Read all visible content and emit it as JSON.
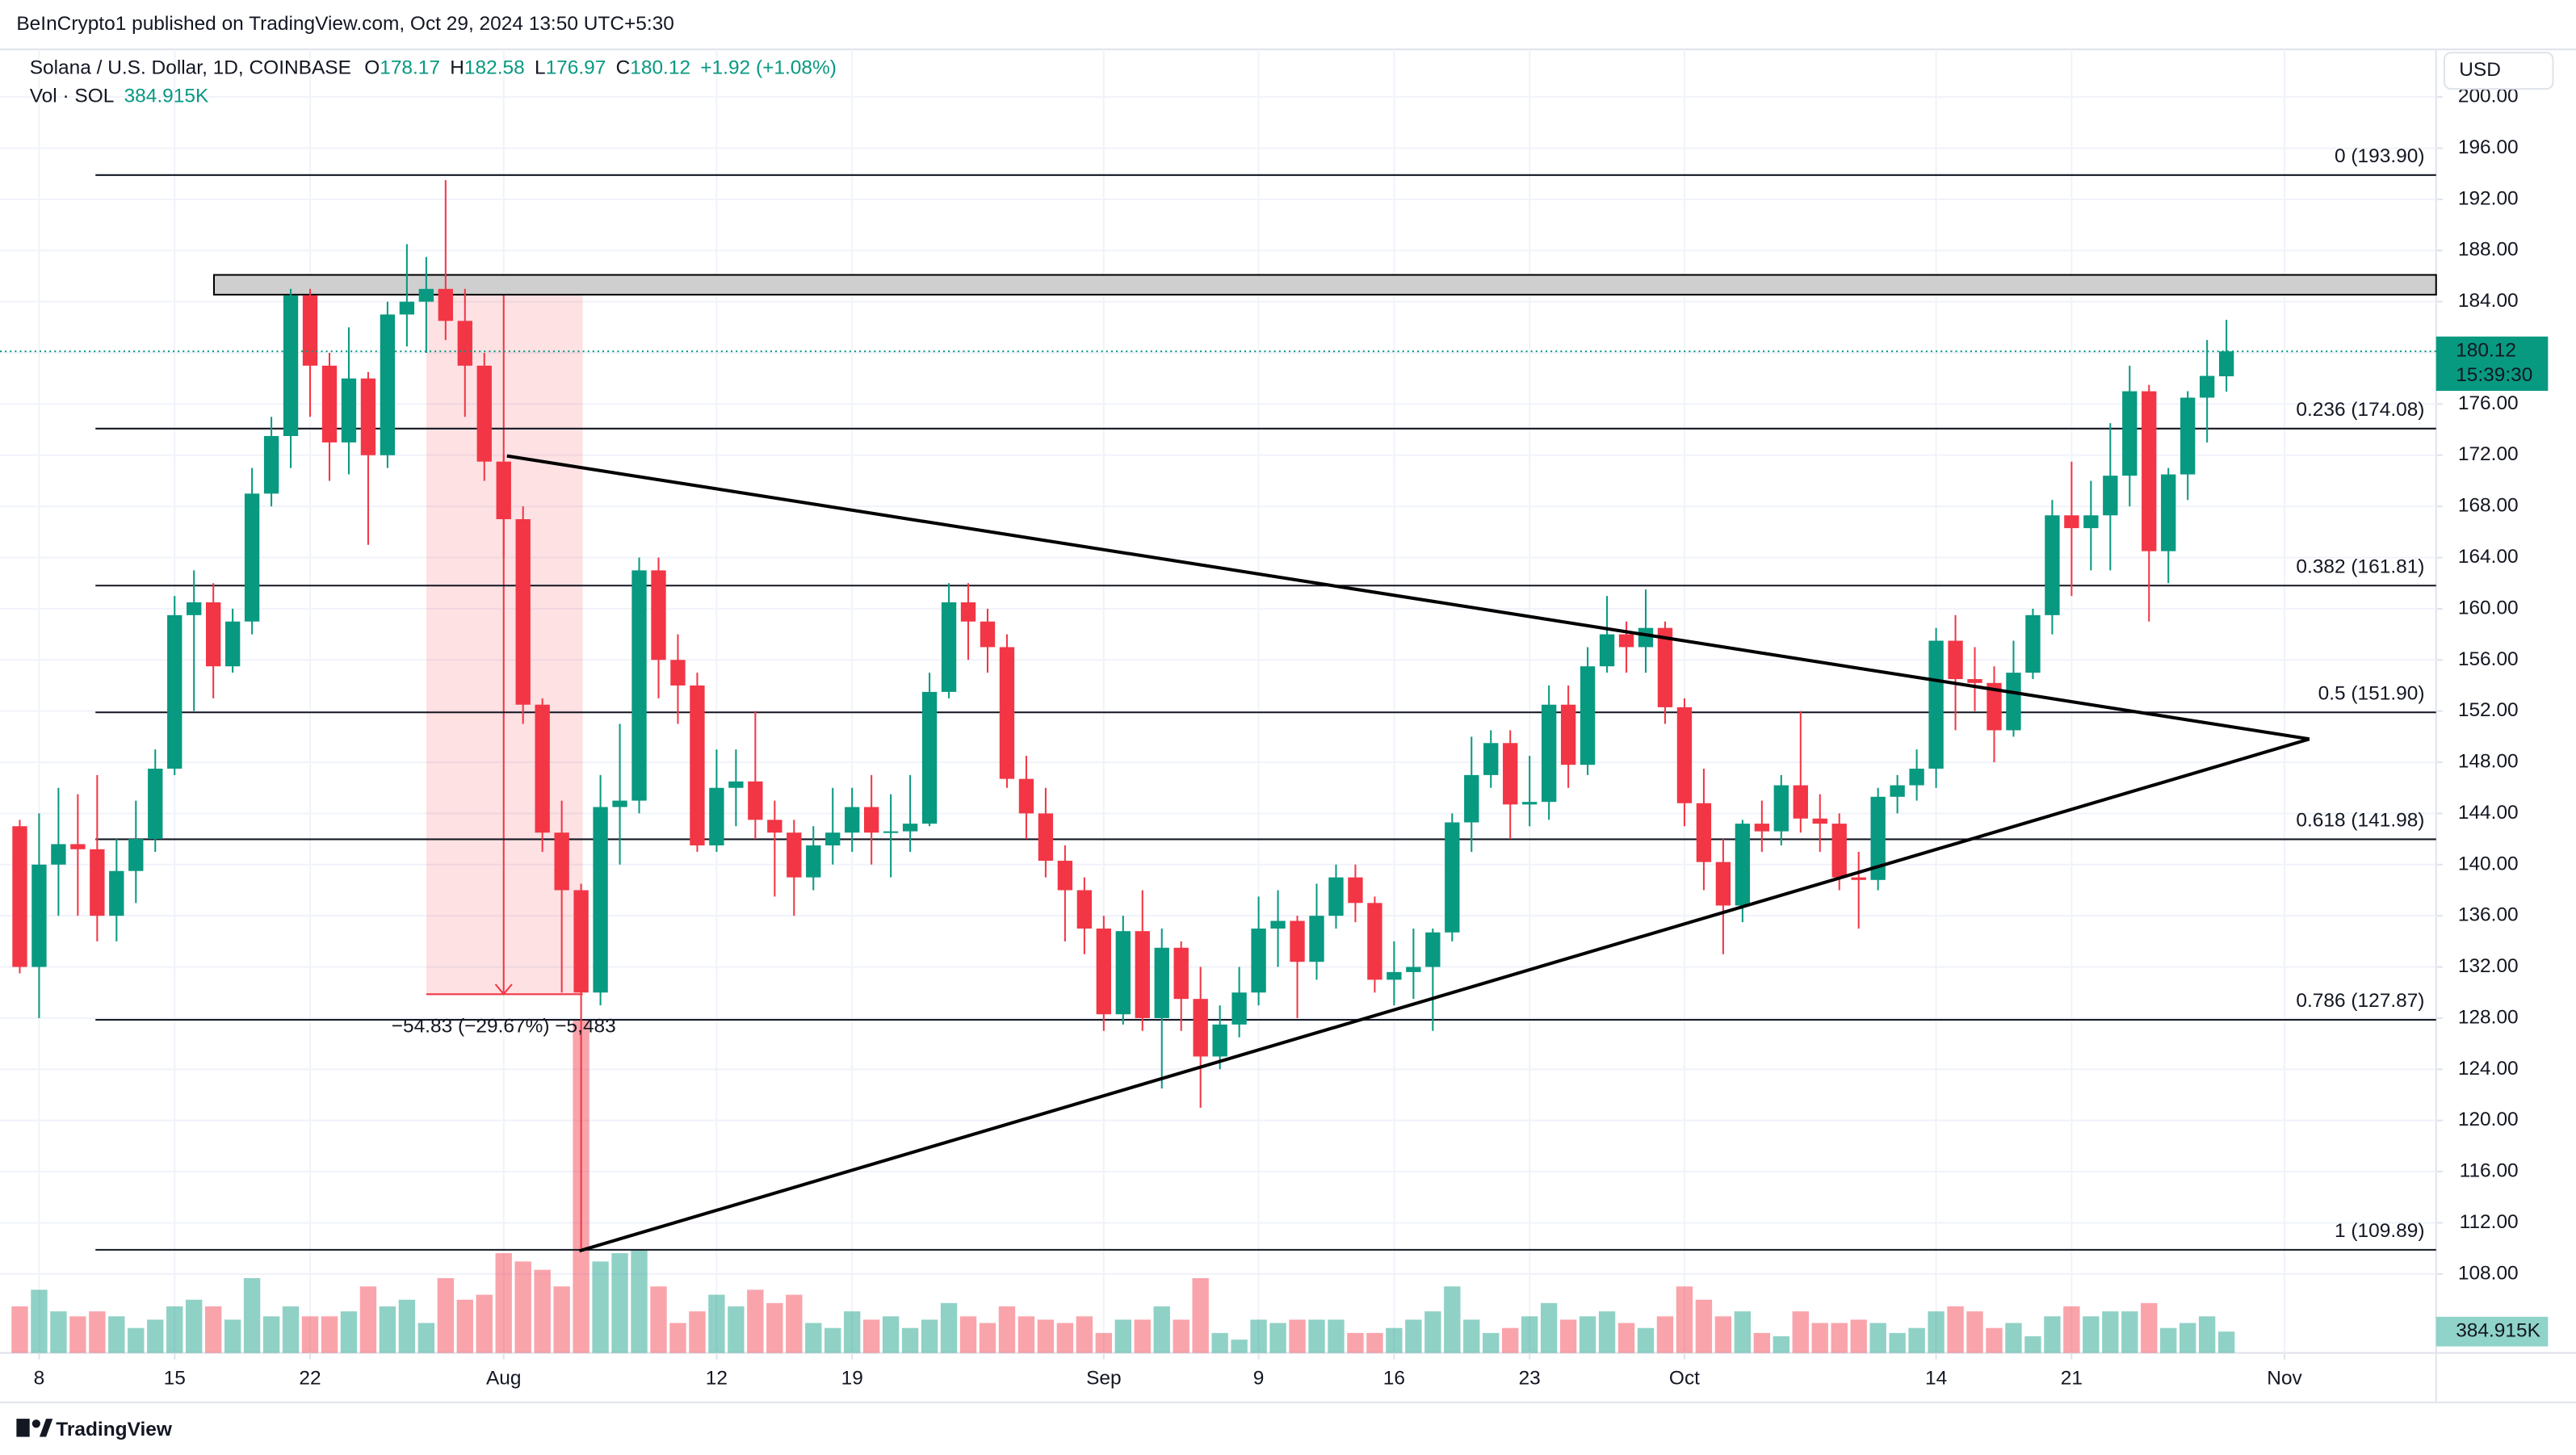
{
  "header": {
    "published": "BeInCrypto1 published on TradingView.com, Oct 29, 2024 13:50 UTC+5:30"
  },
  "legend": {
    "symbol": "Solana / U.S. Dollar, 1D, COINBASE",
    "ohlc": [
      {
        "key": "O",
        "value": "178.17"
      },
      {
        "key": "H",
        "value": "182.58"
      },
      {
        "key": "L",
        "value": "176.97"
      },
      {
        "key": "C",
        "value": "180.12"
      }
    ],
    "change": "+1.92 (+1.08%)",
    "volume_title": "Vol · SOL",
    "volume": "384.915K"
  },
  "currency": "USD",
  "price_label": "180.12",
  "countdown": "15:39:30",
  "volume_value_label": "384.915K",
  "measure_label": "−54.83 (−29.67%) −5,483",
  "brand": "TradingView",
  "chart_data": {
    "type": "candlestick",
    "up_color": "#089981",
    "down_color": "#f23645",
    "grid": true,
    "ylim": [
      101.83,
      203.72
    ],
    "yticks": [
      {
        "value": 200,
        "label": "200.00"
      },
      {
        "value": 196,
        "label": "196.00"
      },
      {
        "value": 192,
        "label": "192.00"
      },
      {
        "value": 188,
        "label": "188.00"
      },
      {
        "value": 184,
        "label": "184.00"
      },
      {
        "value": 180,
        "label": "180.00"
      },
      {
        "value": 176,
        "label": "176.00"
      },
      {
        "value": 172,
        "label": "172.00"
      },
      {
        "value": 168,
        "label": "168.00"
      },
      {
        "value": 164,
        "label": "164.00"
      },
      {
        "value": 160,
        "label": "160.00"
      },
      {
        "value": 156,
        "label": "156.00"
      },
      {
        "value": 152,
        "label": "152.00"
      },
      {
        "value": 148,
        "label": "148.00"
      },
      {
        "value": 144,
        "label": "144.00"
      },
      {
        "value": 140,
        "label": "140.00"
      },
      {
        "value": 136,
        "label": "136.00"
      },
      {
        "value": 132,
        "label": "132.00"
      },
      {
        "value": 128,
        "label": "128.00"
      },
      {
        "value": 124,
        "label": "124.00"
      },
      {
        "value": 120,
        "label": "120.00"
      },
      {
        "value": 116,
        "label": "116.00"
      },
      {
        "value": 112,
        "label": "112.00"
      },
      {
        "value": 108,
        "label": "108.00"
      }
    ],
    "xticks": [
      {
        "value": "Jul 8",
        "label": "8"
      },
      {
        "value": "Jul 15",
        "label": "15"
      },
      {
        "value": "Jul 22",
        "label": "22"
      },
      {
        "value": "Aug 1",
        "label": "Aug"
      },
      {
        "value": "Aug 12",
        "label": "12"
      },
      {
        "value": "Aug 19",
        "label": "19"
      },
      {
        "value": "Sep 1",
        "label": "Sep"
      },
      {
        "value": "Sep 9",
        "label": "9"
      },
      {
        "value": "Sep 16",
        "label": "16"
      },
      {
        "value": "Sep 23",
        "label": "23"
      },
      {
        "value": "Oct 1",
        "label": "Oct"
      },
      {
        "value": "Oct 14",
        "label": "14"
      },
      {
        "value": "Oct 21",
        "label": "21"
      },
      {
        "value": "Nov 1",
        "label": "Nov"
      }
    ],
    "x": [
      "Jul 7",
      "Jul 8",
      "Jul 9",
      "Jul 10",
      "Jul 11",
      "Jul 12",
      "Jul 13",
      "Jul 14",
      "Jul 15",
      "Jul 16",
      "Jul 17",
      "Jul 18",
      "Jul 19",
      "Jul 20",
      "Jul 21",
      "Jul 22",
      "Jul 23",
      "Jul 24",
      "Jul 25",
      "Jul 26",
      "Jul 27",
      "Jul 28",
      "Jul 29",
      "Jul 30",
      "Jul 31",
      "Aug 1",
      "Aug 2",
      "Aug 3",
      "Aug 4",
      "Aug 5",
      "Aug 6",
      "Aug 7",
      "Aug 8",
      "Aug 9",
      "Aug 10",
      "Aug 11",
      "Aug 12",
      "Aug 13",
      "Aug 14",
      "Aug 15",
      "Aug 16",
      "Aug 17",
      "Aug 18",
      "Aug 19",
      "Aug 20",
      "Aug 21",
      "Aug 22",
      "Aug 23",
      "Aug 24",
      "Aug 25",
      "Aug 26",
      "Aug 27",
      "Aug 28",
      "Aug 29",
      "Aug 30",
      "Aug 31",
      "Sep 1",
      "Sep 2",
      "Sep 3",
      "Sep 4",
      "Sep 5",
      "Sep 6",
      "Sep 7",
      "Sep 8",
      "Sep 9",
      "Sep 10",
      "Sep 11",
      "Sep 12",
      "Sep 13",
      "Sep 14",
      "Sep 15",
      "Sep 16",
      "Sep 17",
      "Sep 18",
      "Sep 19",
      "Sep 20",
      "Sep 21",
      "Sep 22",
      "Sep 23",
      "Sep 24",
      "Sep 25",
      "Sep 26",
      "Sep 27",
      "Sep 28",
      "Sep 29",
      "Sep 30",
      "Oct 1",
      "Oct 2",
      "Oct 3",
      "Oct 4",
      "Oct 5",
      "Oct 6",
      "Oct 7",
      "Oct 8",
      "Oct 9",
      "Oct 10",
      "Oct 11",
      "Oct 12",
      "Oct 13",
      "Oct 14",
      "Oct 15",
      "Oct 16",
      "Oct 17",
      "Oct 18",
      "Oct 19",
      "Oct 20",
      "Oct 21",
      "Oct 22",
      "Oct 23",
      "Oct 24",
      "Oct 25",
      "Oct 26",
      "Oct 27",
      "Oct 28",
      "Oct 29",
      "Oct 30",
      "Oct 31",
      "Nov 1",
      "Nov 2",
      "Nov 3",
      "Nov 4",
      "Nov 5",
      "Nov 6",
      "Nov 7",
      "Nov 8"
    ],
    "open": [
      143,
      132,
      140,
      141.6,
      141.2,
      136,
      139.5,
      142,
      147.5,
      159.5,
      160.5,
      155.5,
      159,
      169,
      173.5,
      184.5,
      179,
      173,
      178,
      172,
      183,
      184,
      185,
      182.5,
      179,
      171.5,
      167,
      152.5,
      142.5,
      138,
      130,
      144.5,
      145,
      163,
      156,
      154,
      141.5,
      146,
      146.5,
      143.5,
      142.5,
      139,
      141.5,
      142.5,
      144.5,
      142.5,
      142.6,
      143.2,
      153.5,
      160.5,
      159,
      157,
      146.7,
      144,
      140.3,
      138,
      135,
      128.3,
      134.8,
      128,
      133.5,
      129.5,
      125,
      127.5,
      130,
      135,
      135.6,
      132.4,
      136,
      139,
      137,
      131,
      131.6,
      132,
      134.7,
      143.3,
      147,
      149.5,
      144.7,
      144.9,
      152.5,
      147.8,
      155.5,
      158,
      157,
      158.5,
      152.3,
      144.8,
      140.2,
      136.8,
      143.2,
      142.6,
      146.2,
      143.6,
      143.2,
      139,
      138.8,
      145.3,
      146.2,
      147.5,
      157.5,
      154.5,
      154.2,
      150.5,
      155,
      159.5,
      167.3,
      166.3,
      167.3,
      170.4,
      177,
      164.5,
      170.5,
      176.5,
      178.17,
      null,
      null,
      null,
      null,
      null,
      null,
      null,
      null,
      null,
      null
    ],
    "high": [
      143.5,
      144,
      146,
      145.5,
      147,
      142,
      145,
      149,
      161,
      163,
      162,
      160,
      171,
      175,
      185,
      185,
      180,
      182,
      178.5,
      184,
      188.5,
      187.5,
      193.5,
      185,
      180,
      172,
      168,
      153,
      145,
      138.5,
      147,
      151,
      164,
      164,
      158,
      155,
      149,
      149,
      152,
      145,
      143.5,
      143,
      146,
      146,
      147,
      145.5,
      147,
      155,
      162,
      162,
      160,
      158,
      148.5,
      146,
      141.5,
      139,
      136,
      136,
      138,
      135,
      134,
      132,
      129,
      132,
      137.5,
      138,
      136,
      138.5,
      140,
      140,
      137.5,
      134,
      135,
      135,
      144,
      150,
      150.5,
      150.5,
      148.5,
      154,
      154,
      157,
      161,
      159,
      161.5,
      159,
      153,
      147.5,
      142,
      143.5,
      145,
      147,
      152,
      145.5,
      144,
      141,
      146,
      147,
      149,
      158.5,
      159.5,
      157,
      155.5,
      157.5,
      160,
      168.5,
      171.5,
      170,
      174.5,
      179,
      177.5,
      171,
      177,
      181,
      182.58,
      null,
      null,
      null,
      null,
      null,
      null,
      null,
      null,
      null,
      null
    ],
    "low": [
      131.5,
      128,
      136,
      136,
      134,
      134,
      137,
      141,
      147,
      152,
      153,
      155,
      158,
      168,
      171,
      175,
      170,
      170.5,
      165,
      171,
      180.5,
      180,
      181,
      175,
      170,
      164,
      151,
      141,
      130,
      110,
      129,
      140,
      144,
      153,
      151,
      141,
      141,
      143,
      142,
      137.5,
      136,
      138,
      140,
      141,
      140,
      139,
      141,
      143,
      153,
      156,
      155,
      146,
      142,
      139,
      134,
      133,
      127,
      127.5,
      127,
      122.5,
      127,
      121,
      124,
      126.5,
      129,
      132,
      128,
      131,
      135,
      135.5,
      130,
      129,
      129.5,
      127,
      134,
      141,
      146,
      142,
      143,
      143.5,
      146,
      147,
      155,
      155,
      155,
      151,
      143,
      138,
      133,
      135.5,
      141,
      141.5,
      142.5,
      141,
      138,
      135,
      138,
      144,
      145,
      146,
      150.5,
      152,
      148,
      150,
      154.5,
      158,
      161,
      163,
      163,
      168,
      159,
      162,
      168.5,
      173,
      176.97,
      null,
      null,
      null,
      null,
      null,
      null,
      null,
      null,
      null,
      null
    ],
    "close": [
      132,
      140,
      141.6,
      141.2,
      136,
      139.5,
      142,
      147.5,
      159.5,
      160.5,
      155.5,
      159,
      169,
      173.5,
      184.5,
      179,
      173,
      178,
      172,
      183,
      184,
      185,
      182.5,
      179,
      171.5,
      167,
      152.5,
      142.5,
      138,
      130,
      144.5,
      145,
      163,
      156,
      154,
      141.5,
      146,
      146.5,
      143.5,
      142.5,
      139,
      141.5,
      142.5,
      144.5,
      142.5,
      142.6,
      143.2,
      153.5,
      160.5,
      159,
      157,
      146.7,
      144,
      140.3,
      138,
      135,
      128.3,
      134.8,
      128,
      133.5,
      129.5,
      125,
      127.5,
      130,
      135,
      135.6,
      132.4,
      136,
      139,
      137,
      131,
      131.6,
      132,
      134.7,
      143.3,
      147,
      149.5,
      144.7,
      144.9,
      152.5,
      147.8,
      155.5,
      158,
      157,
      158.5,
      152.3,
      144.8,
      140.2,
      136.8,
      143.2,
      142.6,
      146.2,
      143.6,
      143.2,
      139,
      138.8,
      145.3,
      146.2,
      147.5,
      157.5,
      154.5,
      154.2,
      150.5,
      155,
      159.5,
      167.3,
      166.3,
      167.3,
      170.4,
      177,
      164.5,
      170.5,
      176.5,
      178.2,
      180.12,
      null,
      null,
      null,
      null,
      null,
      null,
      null,
      null,
      null,
      null
    ],
    "volume": [
      840000,
      1140000,
      750000,
      660000,
      750000,
      660000,
      450000,
      600000,
      840000,
      960000,
      840000,
      600000,
      1350000,
      660000,
      840000,
      660000,
      660000,
      750000,
      1200000,
      840000,
      960000,
      540000,
      1350000,
      960000,
      1050000,
      1800000,
      1650000,
      1500000,
      1200000,
      6000000,
      1650000,
      1800000,
      1860000,
      1200000,
      540000,
      750000,
      1050000,
      840000,
      1140000,
      900000,
      1050000,
      540000,
      450000,
      750000,
      600000,
      660000,
      450000,
      600000,
      900000,
      660000,
      540000,
      840000,
      660000,
      600000,
      540000,
      660000,
      360000,
      600000,
      600000,
      840000,
      600000,
      1350000,
      360000,
      240000,
      600000,
      540000,
      600000,
      600000,
      600000,
      360000,
      360000,
      450000,
      600000,
      750000,
      1200000,
      600000,
      360000,
      450000,
      660000,
      900000,
      600000,
      660000,
      750000,
      540000,
      450000,
      660000,
      1200000,
      960000,
      660000,
      750000,
      360000,
      300000,
      750000,
      540000,
      540000,
      600000,
      540000,
      360000,
      450000,
      750000,
      840000,
      750000,
      450000,
      540000,
      300000,
      660000,
      840000,
      660000,
      750000,
      750000,
      900000,
      450000,
      540000,
      660000,
      384915,
      null,
      null,
      null,
      null,
      null,
      null,
      null,
      null,
      null,
      null
    ],
    "fib_levels": [
      {
        "label": "0 (193.90)",
        "value": 193.9
      },
      {
        "label": "0.236 (174.08)",
        "value": 174.08
      },
      {
        "label": "0.382 (161.81)",
        "value": 161.81
      },
      {
        "label": "0.5 (151.90)",
        "value": 151.9
      },
      {
        "label": "0.618 (141.98)",
        "value": 141.98
      },
      {
        "label": "0.786 (127.87)",
        "value": 127.87
      },
      {
        "label": "1 (109.89)",
        "value": 109.89
      }
    ]
  }
}
